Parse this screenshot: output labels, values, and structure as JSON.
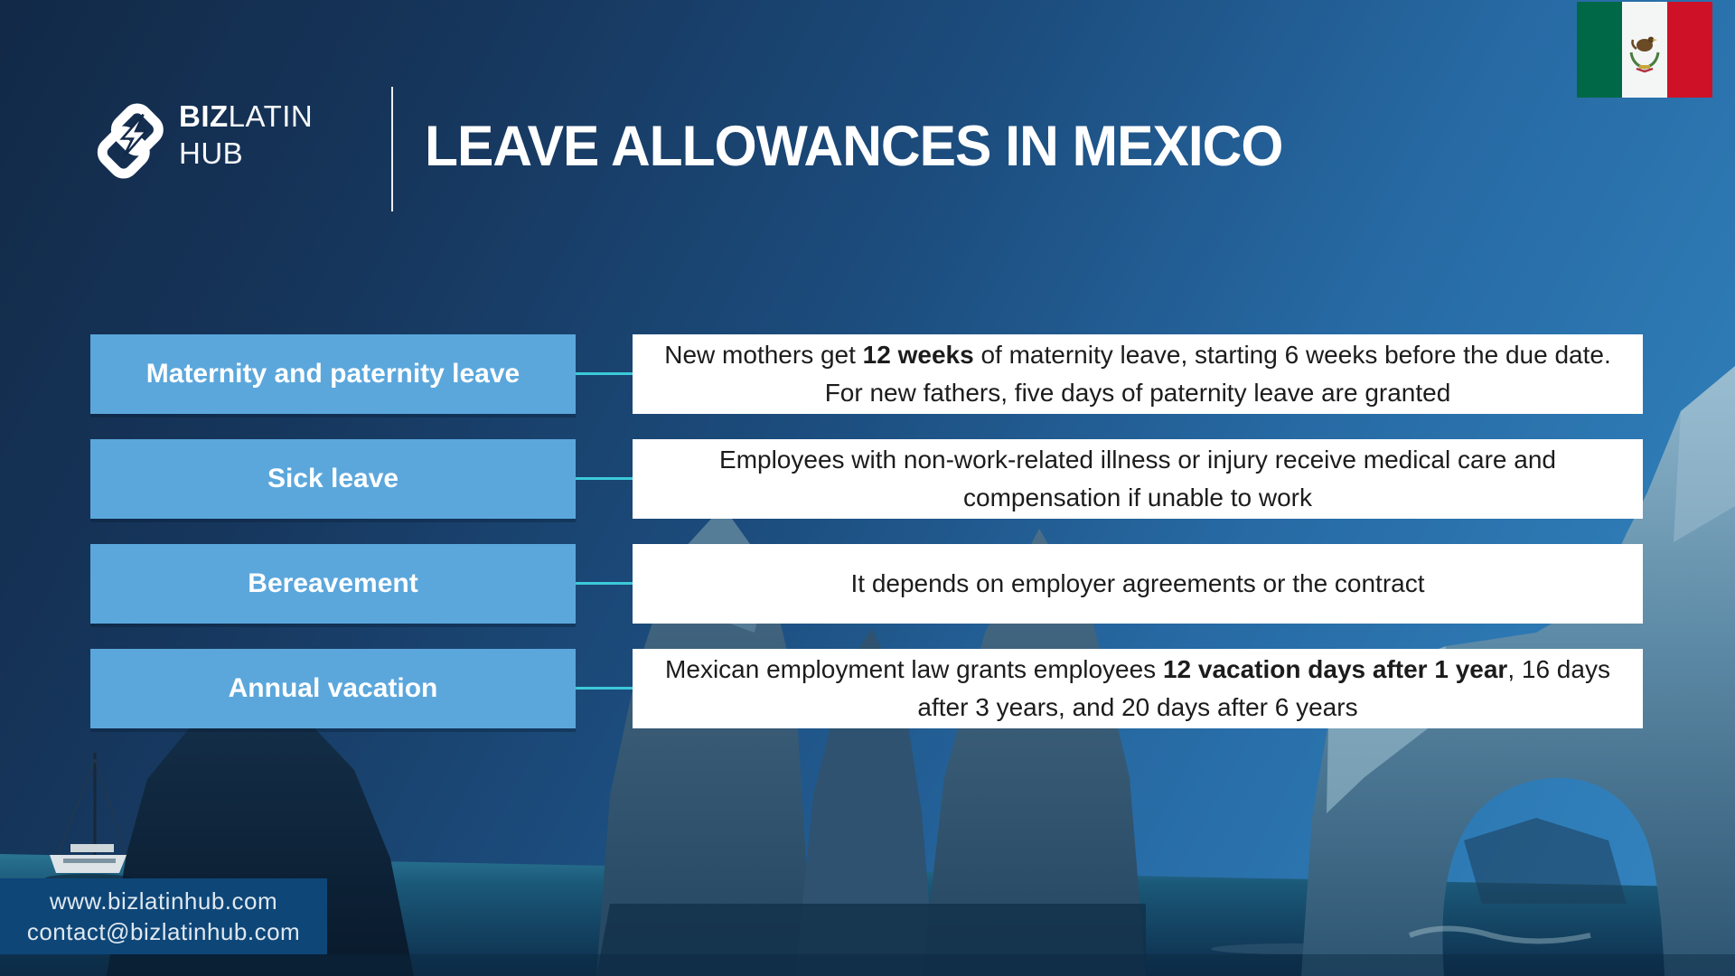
{
  "header": {
    "logo_text_primary": "BIZ",
    "logo_text_secondary": "LATIN",
    "logo_text_line2": "HUB",
    "title": "LEAVE ALLOWANCES IN MEXICO"
  },
  "flag": {
    "country": "Mexico",
    "green": "#006847",
    "white": "#f4f6f6",
    "red": "#ce1126"
  },
  "rows": [
    {
      "label": "Maternity and paternity leave",
      "desc": [
        {
          "t": "New mothers get "
        },
        {
          "t": "12 weeks",
          "b": true
        },
        {
          "t": " of maternity leave, starting 6 weeks before the due date. For new fathers, five days of paternity leave are granted"
        }
      ]
    },
    {
      "label": "Sick leave",
      "desc": [
        {
          "t": "Employees with non-work-related illness or injury receive medical care and compensation if unable to work"
        }
      ]
    },
    {
      "label": "Bereavement",
      "desc": [
        {
          "t": "It depends on employer agreements or the contract"
        }
      ]
    },
    {
      "label": "Annual vacation",
      "desc": [
        {
          "t": "Mexican employment law grants employees "
        },
        {
          "t": "12 vacation days after 1 year",
          "b": true
        },
        {
          "t": ", 16 days after 3 years, and 20 days after 6 years"
        }
      ]
    }
  ],
  "footer": {
    "website": "www.bizlatinhub.com",
    "email": "contact@bizlatinhub.com"
  },
  "colors": {
    "label_box_blue": "#5ba7dc",
    "connector_cyan": "#3cc9d9",
    "footer_bg": "#0e4678",
    "background_navy": "#122947",
    "background_steel_blue": "#2f7db8"
  }
}
